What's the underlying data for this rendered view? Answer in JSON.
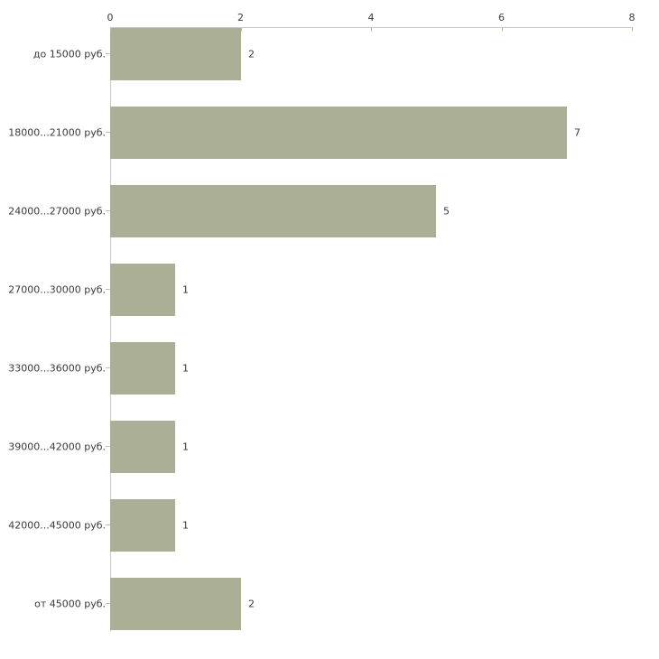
{
  "chart_data": {
    "type": "bar",
    "orientation": "horizontal",
    "title": "",
    "xlabel": "",
    "ylabel": "",
    "categories": [
      "до 15000 руб.",
      "18000...21000 руб.",
      "24000...27000 руб.",
      "27000...30000 руб.",
      "33000...36000 руб.",
      "39000...42000 руб.",
      "42000...45000 руб.",
      "от 45000 руб."
    ],
    "values": [
      2,
      7,
      5,
      1,
      1,
      1,
      1,
      2
    ],
    "xlim": [
      0,
      8
    ],
    "x_ticks": [
      0,
      2,
      4,
      6,
      8
    ],
    "x_axis_position": "top",
    "grid": false,
    "legend": false,
    "bar_color": "#aaaf96",
    "axis_color": "#c9c9c9",
    "xtick_color": "#b9bc9d",
    "cattick_color": "#c3c2b2",
    "text_color": "#3a3a3a",
    "background_color": "#ffffff"
  }
}
